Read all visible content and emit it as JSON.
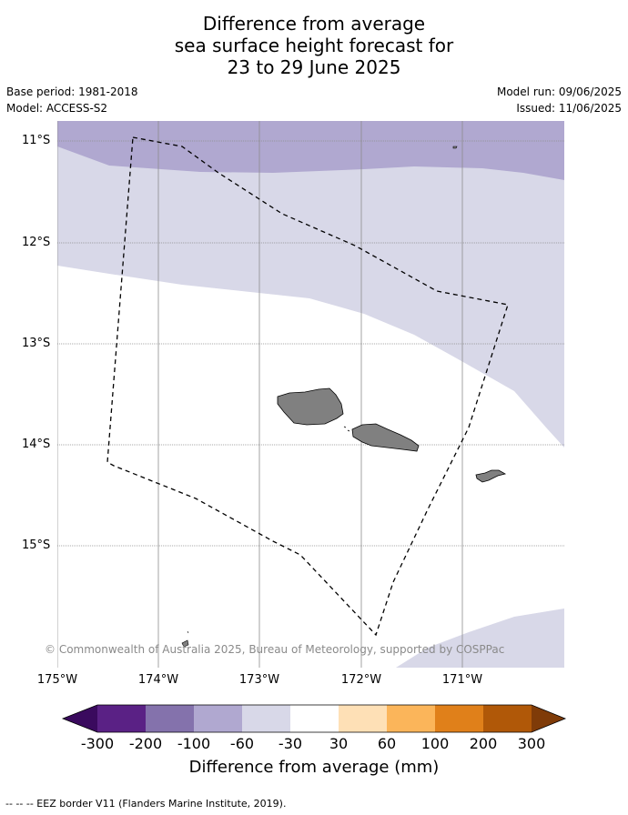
{
  "title_lines": [
    "Difference from average",
    "sea surface height forecast for",
    "23 to 29 June 2025"
  ],
  "meta": {
    "base_period": "Base period: 1981-2018",
    "model": "Model: ACCESS-S2",
    "model_run": "Model run: 09/06/2025",
    "issued": "Issued: 11/06/2025"
  },
  "map": {
    "lat_labels": [
      "11°S",
      "12°S",
      "13°S",
      "14°S",
      "15°S"
    ],
    "lon_labels": [
      "175°W",
      "174°W",
      "173°W",
      "172°W",
      "171°W"
    ],
    "copyright": "© Commonwealth of Australia 2025, Bureau of Meteorology, supported by COSPPac",
    "land_color": "#808080",
    "regions": [
      {
        "name": "-100 to -60 mm",
        "color": "#b0a8d0"
      },
      {
        "name": "-60 to -30 mm",
        "color": "#d8d8e8"
      },
      {
        "name": "-30 to 30 mm",
        "color": "#ffffff"
      }
    ]
  },
  "colorbar": {
    "title": "Difference from average (mm)",
    "ticks": [
      "-300",
      "-200",
      "-100",
      "-60",
      "-30",
      "30",
      "60",
      "100",
      "200",
      "300"
    ],
    "colors": [
      "#3a0a5e",
      "#5a2185",
      "#8472ac",
      "#b0a8d0",
      "#d8d8e8",
      "#ffffff",
      "#fee0b6",
      "#fbb55a",
      "#e0801a",
      "#b05808",
      "#7f3b08"
    ]
  },
  "footnote": "--  --  -- EEZ border V11 (Flanders Marine Institute, 2019)."
}
